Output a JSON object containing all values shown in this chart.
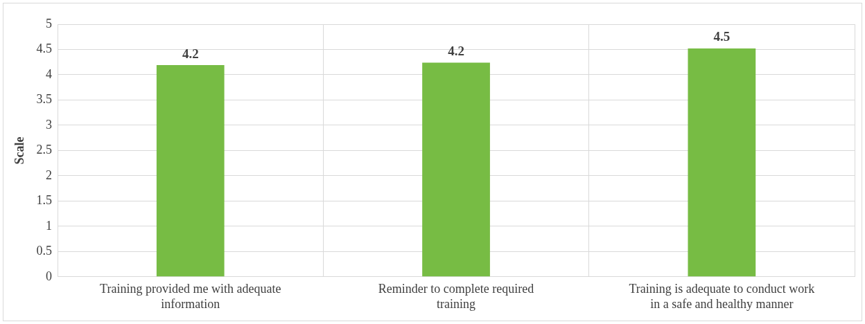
{
  "chart_data": {
    "type": "bar",
    "ylabel": "Scale",
    "categories": [
      "Training provided me with adequate information",
      "Reminder to complete required training",
      "Training is adequate to conduct work in a safe and healthy manner"
    ],
    "values": [
      4.19,
      4.24,
      4.52
    ],
    "value_labels": [
      "4.2",
      "4.2",
      "4.5"
    ],
    "color": "#77bc44",
    "ylim": [
      0,
      5
    ],
    "yticks": [
      0,
      0.5,
      1,
      1.5,
      2,
      2.5,
      3,
      3.5,
      4,
      4.5,
      5
    ],
    "grid": true,
    "legend": false
  }
}
